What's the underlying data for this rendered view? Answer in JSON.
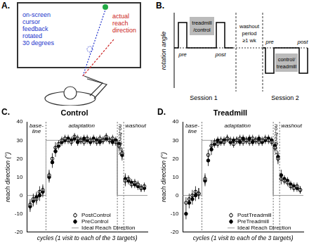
{
  "panel_A": {
    "letter": "A.",
    "cursor_label": [
      "on-screen",
      "cursor",
      "feedback",
      "rotated",
      "30 degrees"
    ],
    "reach_label": [
      "actual",
      "reach",
      "direction"
    ]
  },
  "panel_B": {
    "letter": "B.",
    "y_label": "rotation angle",
    "pre": "pre",
    "post": "post",
    "box1": [
      "treadmill",
      "/control"
    ],
    "box2": [
      "control/",
      "treadmill"
    ],
    "washout": [
      "washout",
      "period",
      "≥1 wk"
    ],
    "session1": "Session 1",
    "session2": "Session 2"
  },
  "chart_data": [
    {
      "panel": "C.",
      "type": "scatter",
      "title": "Control",
      "x_label": "cycles (1 visit to each of the 3 targets)",
      "y_label": "reach direction (°)",
      "xlim": [
        -6,
        32
      ],
      "ylim": [
        -20,
        40
      ],
      "yticks": [
        -20,
        -10,
        0,
        10,
        20,
        30,
        40
      ],
      "tick_labels": "y",
      "grid": false,
      "legend": "lower right",
      "phases": [
        [
          "base-",
          "line"
        ],
        [
          "adaptation"
        ],
        [
          "no-feedback"
        ],
        [
          "washout"
        ]
      ],
      "phase_boundaries": [
        0,
        22.5,
        24.5
      ],
      "series": [
        {
          "name": "PostControl",
          "color": "#000000",
          "marker": "circle-open",
          "x": [
            -5,
            -4,
            -3,
            -2,
            -1,
            1,
            2,
            3,
            4,
            5,
            6,
            7,
            8,
            9,
            10,
            11,
            12,
            13,
            14,
            15,
            16,
            17,
            18,
            19,
            20,
            21,
            22,
            23,
            24,
            25,
            26,
            27,
            28,
            29,
            30,
            31
          ],
          "values": [
            -5,
            -2,
            -2,
            2,
            3,
            11,
            20,
            26,
            28,
            30,
            31,
            30,
            29,
            32,
            31,
            30,
            29,
            31,
            30,
            30,
            29,
            31,
            30,
            32,
            30,
            31,
            29,
            27,
            23,
            8,
            9,
            6,
            7,
            6,
            4,
            5
          ],
          "errors": [
            3,
            3,
            3,
            3,
            3,
            3,
            3,
            3,
            2,
            2,
            2,
            2,
            2,
            2,
            2,
            2,
            2,
            2,
            2,
            2,
            2,
            2,
            2,
            2,
            2,
            2,
            2,
            2,
            3,
            3,
            2,
            2,
            2,
            2,
            2,
            2
          ]
        },
        {
          "name": "PreControl",
          "color": "#000000",
          "marker": "circle",
          "x": [
            -5,
            -4,
            -3,
            -2,
            -1,
            1,
            2,
            3,
            4,
            5,
            6,
            7,
            8,
            9,
            10,
            11,
            12,
            13,
            14,
            15,
            16,
            17,
            18,
            19,
            20,
            21,
            22,
            23,
            24,
            25,
            26,
            27,
            28,
            29,
            30,
            31
          ],
          "values": [
            -6,
            -3,
            -1,
            0,
            2,
            10,
            18,
            24,
            27,
            29,
            30,
            31,
            30,
            31,
            29,
            30,
            31,
            30,
            29,
            31,
            30,
            29,
            30,
            31,
            30,
            29,
            30,
            28,
            22,
            9,
            8,
            7,
            6,
            5,
            4,
            4
          ],
          "errors": [
            3,
            3,
            3,
            3,
            3,
            3,
            3,
            3,
            2,
            2,
            2,
            2,
            2,
            2,
            2,
            2,
            2,
            2,
            2,
            2,
            2,
            2,
            2,
            2,
            2,
            2,
            2,
            2,
            3,
            3,
            2,
            2,
            2,
            2,
            2,
            2
          ]
        },
        {
          "name": "Ideal Reach Direction",
          "type": "line",
          "color": "#999999",
          "line_style": "solid",
          "x": [
            -6,
            0,
            0,
            22.5,
            22.5,
            32
          ],
          "values": [
            0,
            0,
            30,
            30,
            0,
            0
          ]
        }
      ]
    },
    {
      "panel": "D.",
      "type": "scatter",
      "title": "Treadmill",
      "x_label": "cycles (1 visit to each of the 3 targets)",
      "y_label": "reach direction (°)",
      "xlim": [
        -6,
        32
      ],
      "ylim": [
        -20,
        40
      ],
      "yticks": [
        -20,
        -10,
        0,
        10,
        20,
        30,
        40
      ],
      "tick_labels": "y",
      "grid": false,
      "legend": "lower right",
      "phases": [
        [
          "base-",
          "line"
        ],
        [
          "adaptation"
        ],
        [
          "no-feedback"
        ],
        [
          "washout"
        ]
      ],
      "phase_boundaries": [
        0,
        22.5,
        24.5
      ],
      "series": [
        {
          "name": "PostTreadmill",
          "color": "#000000",
          "marker": "circle-open",
          "x": [
            -5,
            -4,
            -3,
            -2,
            -1,
            1,
            2,
            3,
            4,
            5,
            6,
            7,
            8,
            9,
            10,
            11,
            12,
            13,
            14,
            15,
            16,
            17,
            18,
            19,
            20,
            21,
            22,
            23,
            24,
            25,
            26,
            27,
            28,
            29,
            30,
            31
          ],
          "values": [
            -4,
            -2,
            0,
            2,
            1,
            9,
            22,
            27,
            29,
            28,
            30,
            29,
            31,
            30,
            28,
            30,
            31,
            29,
            30,
            29,
            31,
            30,
            29,
            30,
            31,
            30,
            29,
            26,
            20,
            9,
            8,
            7,
            5,
            4,
            5,
            3
          ],
          "errors": [
            3,
            3,
            3,
            3,
            3,
            3,
            3,
            3,
            2,
            2,
            2,
            2,
            2,
            2,
            2,
            2,
            2,
            2,
            2,
            2,
            2,
            2,
            2,
            2,
            2,
            2,
            2,
            2,
            3,
            3,
            2,
            2,
            2,
            2,
            2,
            2
          ]
        },
        {
          "name": "PreTreadmill",
          "color": "#000000",
          "marker": "circle",
          "x": [
            -5,
            -4,
            -3,
            -2,
            -1,
            1,
            2,
            3,
            4,
            5,
            6,
            7,
            8,
            9,
            10,
            11,
            12,
            13,
            14,
            15,
            16,
            17,
            18,
            19,
            20,
            21,
            22,
            23,
            24,
            25,
            26,
            27,
            28,
            29,
            30,
            31
          ],
          "values": [
            -10,
            -4,
            -2,
            0,
            1,
            8,
            19,
            25,
            28,
            30,
            29,
            30,
            31,
            29,
            30,
            30,
            29,
            31,
            30,
            31,
            29,
            30,
            31,
            29,
            30,
            31,
            30,
            27,
            21,
            11,
            9,
            8,
            6,
            5,
            4,
            3
          ],
          "errors": [
            3,
            3,
            3,
            3,
            3,
            3,
            3,
            3,
            2,
            2,
            2,
            2,
            2,
            2,
            2,
            2,
            2,
            2,
            2,
            2,
            2,
            2,
            2,
            2,
            2,
            2,
            2,
            2,
            3,
            3,
            2,
            2,
            2,
            2,
            2,
            2
          ]
        },
        {
          "name": "Ideal Reach Direction",
          "type": "line",
          "color": "#999999",
          "line_style": "solid",
          "x": [
            -6,
            0,
            0,
            22.5,
            22.5,
            32
          ],
          "values": [
            0,
            0,
            30,
            30,
            0,
            0
          ]
        }
      ]
    }
  ]
}
